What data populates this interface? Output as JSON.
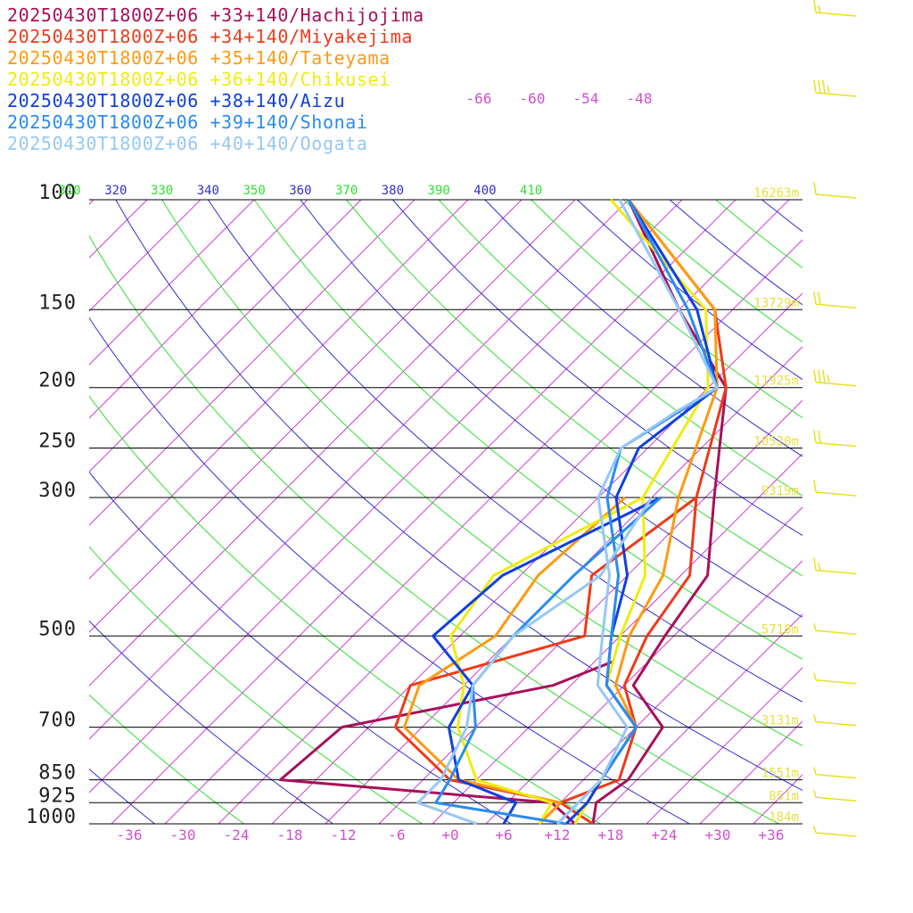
{
  "chart_data": {
    "type": "line",
    "chart_kind": "skew-T log-P sounding",
    "title": "",
    "y_scale": "log",
    "pressure_levels": [
      100,
      150,
      200,
      250,
      300,
      500,
      700,
      850,
      925,
      1000
    ],
    "pressure_labels": [
      "100",
      "150",
      "200",
      "250",
      "300",
      "500",
      "700",
      "850",
      "925",
      "1000"
    ],
    "height_labels": [
      {
        "p": 100,
        "text": "16263m"
      },
      {
        "p": 150,
        "text": "13729m"
      },
      {
        "p": 200,
        "text": "11925m"
      },
      {
        "p": 250,
        "text": "10520m"
      },
      {
        "p": 300,
        "text": "9319m"
      },
      {
        "p": 500,
        "text": "5718m"
      },
      {
        "p": 700,
        "text": "3131m"
      },
      {
        "p": 850,
        "text": "1551m"
      },
      {
        "p": 925,
        "text": "851m"
      },
      {
        "p": 1000,
        "text": "184m"
      }
    ],
    "temperature_ticks": [
      -36,
      -30,
      -24,
      -18,
      -12,
      -6,
      0,
      6,
      12,
      18,
      24,
      30,
      36
    ],
    "temperature_tick_labels": [
      "-36",
      "-30",
      "-24",
      "-18",
      "-12",
      "-6",
      "+0",
      "+6",
      "+12",
      "+18",
      "+24",
      "+30",
      "+36"
    ],
    "upper_temperature_labels": [
      {
        "t": -66,
        "text": "-66"
      },
      {
        "t": -60,
        "text": "-60"
      },
      {
        "t": -54,
        "text": "-54"
      },
      {
        "t": -48,
        "text": "-48"
      }
    ],
    "theta_labels": [
      {
        "theta": 310,
        "text": "310",
        "kind": "dry"
      },
      {
        "theta": 320,
        "text": "320",
        "kind": "moist"
      },
      {
        "theta": 330,
        "text": "330",
        "kind": "dry"
      },
      {
        "theta": 340,
        "text": "340",
        "kind": "moist"
      },
      {
        "theta": 350,
        "text": "350",
        "kind": "dry"
      },
      {
        "theta": 360,
        "text": "360",
        "kind": "moist"
      },
      {
        "theta": 370,
        "text": "370",
        "kind": "dry"
      },
      {
        "theta": 380,
        "text": "380",
        "kind": "moist"
      },
      {
        "theta": 390,
        "text": "390",
        "kind": "dry"
      },
      {
        "theta": 400,
        "text": "400",
        "kind": "moist"
      },
      {
        "theta": 410,
        "text": "410",
        "kind": "dry"
      }
    ],
    "series": [
      {
        "name": "20250430T1800Z+06 +33+140/Hachijojima",
        "color": "#a8105a",
        "temperature": [
          [
            1000,
            16
          ],
          [
            925,
            14
          ],
          [
            850,
            15
          ],
          [
            700,
            13
          ],
          [
            600,
            5
          ],
          [
            500,
            3
          ],
          [
            400,
            1
          ],
          [
            300,
            -7
          ],
          [
            200,
            -18
          ],
          [
            150,
            -32
          ],
          [
            100,
            -50
          ]
        ],
        "dewpoint": [
          [
            1000,
            14
          ],
          [
            925,
            9
          ],
          [
            850,
            -24
          ],
          [
            700,
            -23
          ],
          [
            600,
            -4
          ],
          [
            550,
            0
          ]
        ]
      },
      {
        "name": "20250430T1800Z+06 +34+140/Miyakejima",
        "color": "#ee3a1a",
        "temperature": [
          [
            1000,
            16
          ],
          [
            925,
            10
          ],
          [
            850,
            14
          ],
          [
            700,
            10
          ],
          [
            600,
            4
          ],
          [
            500,
            1
          ],
          [
            400,
            -1
          ],
          [
            300,
            -9
          ],
          [
            200,
            -18
          ],
          [
            150,
            -28
          ],
          [
            100,
            -50
          ]
        ],
        "dewpoint": [
          [
            1000,
            10
          ],
          [
            925,
            10
          ],
          [
            850,
            -5
          ],
          [
            700,
            -17
          ],
          [
            600,
            -20
          ],
          [
            500,
            -6
          ],
          [
            400,
            -12
          ],
          [
            300,
            -9
          ]
        ]
      },
      {
        "name": "20250430T1800Z+06 +35+140/Tateyama",
        "color": "#ff9a10",
        "temperature": [
          [
            1000,
            14
          ],
          [
            925,
            13
          ],
          [
            850,
            12
          ],
          [
            700,
            10
          ],
          [
            600,
            3
          ],
          [
            500,
            -1
          ],
          [
            400,
            -4
          ],
          [
            300,
            -11
          ],
          [
            200,
            -19
          ],
          [
            150,
            -28
          ],
          [
            100,
            -50
          ]
        ],
        "dewpoint": [
          [
            1000,
            10
          ],
          [
            925,
            10
          ],
          [
            850,
            -4
          ],
          [
            700,
            -16
          ],
          [
            600,
            -19
          ],
          [
            500,
            -16
          ],
          [
            400,
            -18
          ],
          [
            300,
            -17
          ]
        ]
      },
      {
        "name": "20250430T1800Z+06 +36+140/Chikusei",
        "color": "#f0ec10",
        "temperature": [
          [
            1000,
            14
          ],
          [
            925,
            13
          ],
          [
            850,
            12
          ],
          [
            700,
            10
          ],
          [
            600,
            2
          ],
          [
            500,
            -2
          ],
          [
            400,
            -6
          ],
          [
            300,
            -15
          ],
          [
            200,
            -20
          ],
          [
            150,
            -29
          ],
          [
            100,
            -52
          ]
        ],
        "dewpoint": [
          [
            1000,
            10
          ],
          [
            925,
            9
          ],
          [
            850,
            -2
          ],
          [
            700,
            -10
          ],
          [
            600,
            -14
          ],
          [
            500,
            -21
          ],
          [
            400,
            -23
          ],
          [
            300,
            -15
          ]
        ]
      },
      {
        "name": "20250430T1800Z+06 +38+140/Aizu",
        "color": "#1040e0",
        "temperature": [
          [
            1000,
            13
          ],
          [
            925,
            13
          ],
          [
            850,
            12
          ],
          [
            700,
            10
          ],
          [
            600,
            2
          ],
          [
            500,
            -3
          ],
          [
            400,
            -8
          ],
          [
            300,
            -18
          ],
          [
            250,
            -21
          ],
          [
            200,
            -19
          ],
          [
            150,
            -30
          ],
          [
            100,
            -50
          ]
        ],
        "dewpoint": [
          [
            1000,
            6
          ],
          [
            925,
            5
          ],
          [
            850,
            -4
          ],
          [
            700,
            -11
          ],
          [
            600,
            -13
          ],
          [
            500,
            -23
          ],
          [
            400,
            -22
          ],
          [
            300,
            -13
          ]
        ]
      },
      {
        "name": "20250430T1800Z+06 +39+140/Shonai",
        "color": "#2a8cf0",
        "temperature": [
          [
            1000,
            12
          ],
          [
            925,
            12
          ],
          [
            850,
            12
          ],
          [
            700,
            10
          ],
          [
            600,
            2
          ],
          [
            500,
            -3
          ],
          [
            400,
            -9
          ],
          [
            300,
            -19
          ],
          [
            250,
            -23
          ],
          [
            200,
            -19
          ],
          [
            150,
            -31
          ],
          [
            100,
            -50
          ]
        ],
        "dewpoint": [
          [
            1000,
            13
          ],
          [
            925,
            -4
          ],
          [
            850,
            -5
          ],
          [
            700,
            -8
          ],
          [
            600,
            -13
          ],
          [
            500,
            -14
          ],
          [
            400,
            -14
          ],
          [
            300,
            -13
          ]
        ]
      },
      {
        "name": "20250430T1800Z+06 +40+140/Oogata",
        "color": "#96c8f4",
        "temperature": [
          [
            1000,
            12
          ],
          [
            925,
            12
          ],
          [
            850,
            12
          ],
          [
            700,
            9
          ],
          [
            600,
            1
          ],
          [
            500,
            -4
          ],
          [
            400,
            -10
          ],
          [
            300,
            -20
          ],
          [
            250,
            -23
          ],
          [
            220,
            -21
          ],
          [
            200,
            -19
          ],
          [
            150,
            -32
          ],
          [
            100,
            -51
          ]
        ],
        "dewpoint": [
          [
            1000,
            3
          ],
          [
            925,
            -6
          ],
          [
            850,
            -6
          ],
          [
            700,
            -9
          ],
          [
            600,
            -13
          ],
          [
            500,
            -14
          ],
          [
            400,
            -11
          ],
          [
            300,
            -14
          ]
        ]
      }
    ],
    "wind_barbs": [
      {
        "p": 70,
        "barbs": "full,half"
      },
      {
        "p": 85,
        "barbs": "full,full,full,half"
      },
      {
        "p": 100,
        "barbs": "full"
      },
      {
        "p": 150,
        "barbs": "full,full"
      },
      {
        "p": 200,
        "barbs": "full,full,full,half"
      },
      {
        "p": 250,
        "barbs": "full,full"
      },
      {
        "p": 300,
        "barbs": "full"
      },
      {
        "p": 400,
        "barbs": "full,half"
      },
      {
        "p": 500,
        "barbs": "half"
      },
      {
        "p": 600,
        "barbs": "half"
      },
      {
        "p": 700,
        "barbs": "half"
      },
      {
        "p": 850,
        "barbs": "half"
      },
      {
        "p": 925,
        "barbs": "half"
      },
      {
        "p": 1000,
        "barbs": "half"
      }
    ],
    "colors": {
      "isobar": "#000000",
      "isotherm": "#d040d0",
      "dry_adiabat": "#30e030",
      "moist_adiabat": "#3030d0",
      "height_label": "#e8e040",
      "wind_barb": "#e8e020",
      "axis_text": "#d050d0"
    },
    "grid": true,
    "legend_placement": "top-left"
  }
}
